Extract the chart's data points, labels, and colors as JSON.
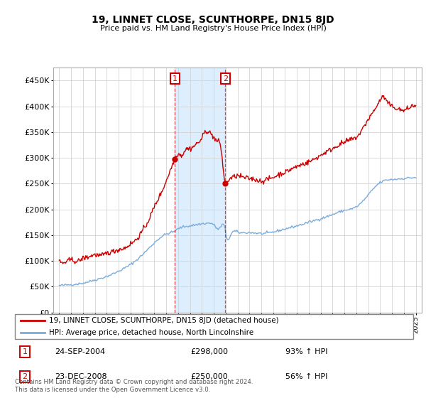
{
  "title": "19, LINNET CLOSE, SCUNTHORPE, DN15 8JD",
  "subtitle": "Price paid vs. HM Land Registry's House Price Index (HPI)",
  "legend_line1": "19, LINNET CLOSE, SCUNTHORPE, DN15 8JD (detached house)",
  "legend_line2": "HPI: Average price, detached house, North Lincolnshire",
  "annotation1_label": "1",
  "annotation1_date": "24-SEP-2004",
  "annotation1_price": "£298,000",
  "annotation1_hpi": "93% ↑ HPI",
  "annotation2_label": "2",
  "annotation2_date": "23-DEC-2008",
  "annotation2_price": "£250,000",
  "annotation2_hpi": "56% ↑ HPI",
  "footer": "Contains HM Land Registry data © Crown copyright and database right 2024.\nThis data is licensed under the Open Government Licence v3.0.",
  "hpi_color": "#7aacdc",
  "price_color": "#cc0000",
  "highlight_color": "#ddeeff",
  "annotation_box_color": "#cc0000",
  "ylim": [
    0,
    475000
  ],
  "yticks": [
    0,
    50000,
    100000,
    150000,
    200000,
    250000,
    300000,
    350000,
    400000,
    450000
  ],
  "sale1_year": 2004.73,
  "sale1_price": 298000,
  "sale2_year": 2008.98,
  "sale2_price": 250000,
  "xmin": 1994.5,
  "xmax": 2025.5
}
